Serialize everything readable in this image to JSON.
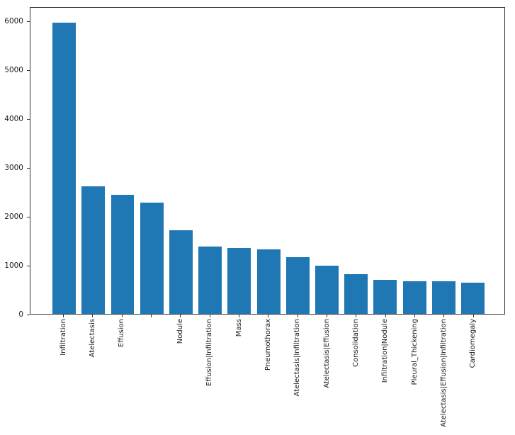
{
  "figure": {
    "background": "#ffffff",
    "axis_color": "#333333",
    "text_color": "#1a1a1a"
  },
  "chart_data": {
    "type": "bar",
    "title": "",
    "xlabel": "",
    "ylabel": "",
    "categories": [
      "Infiltration",
      "Atelectasis",
      "Effusion",
      "",
      "Nodule",
      "Effusion|Infiltration",
      "Mass",
      "Pneumothorax",
      "Atelectasis|Infiltration",
      "Atelectasis|Effusion",
      "Consolidation",
      "Infiltration|Nodule",
      "Pleural_Thickening",
      "Atelectasis|Effusion|Infiltration",
      "Cardiomegaly"
    ],
    "values": [
      6000,
      2630,
      2450,
      2290,
      1720,
      1390,
      1360,
      1330,
      1160,
      990,
      810,
      700,
      672,
      668,
      640
    ],
    "yticks": [
      0,
      1000,
      2000,
      3000,
      4000,
      5000,
      6000
    ],
    "ylim": [
      0,
      6300
    ],
    "grid": false,
    "legend_position": "none",
    "bar_color": "#1f77b4",
    "x_tick_label_rotation": 90
  }
}
